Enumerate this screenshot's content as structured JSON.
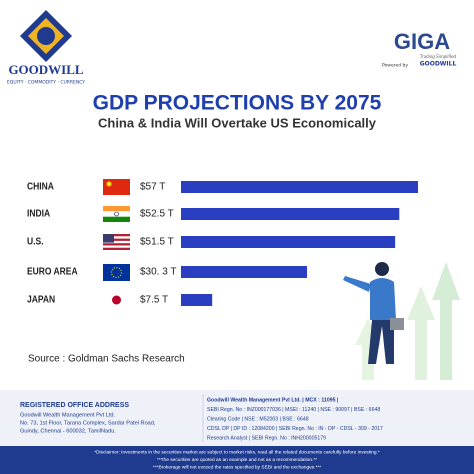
{
  "header": {
    "brand": "GOODWILL",
    "tagline": "EQUITY · COMMODITY · CURRENCY",
    "app": "GIGA",
    "app_tagline": "Trading Simplified",
    "powered_by": "Powered by",
    "powered_brand": "GOODWILL"
  },
  "chart_data": {
    "type": "bar",
    "orientation": "horizontal",
    "title": "GDP PROJECTIONS BY 2075",
    "subtitle": "China & India Will Overtake US Economically",
    "categories": [
      "CHINA",
      "INDIA",
      "U.S.",
      "EURO AREA",
      "JAPAN"
    ],
    "values": [
      57,
      52.5,
      51.5,
      30.3,
      7.5
    ],
    "value_labels": [
      "$57 T",
      "$52.5 T",
      "$51.5 T",
      "$30. 3 T",
      "$7.5 T"
    ],
    "color": "#2a3ec2"
  },
  "source": "Source : Goldman Sachs Research",
  "footer": {
    "office_title": "REGISTERED OFFICE ADDRESS",
    "office_lines": [
      "Goodwill Wealth Management Pvt Ltd.",
      "No. 73, 1st Floor, Tarana Complex, Sardar Patel Road,",
      "Guindy, Chennai - 600032, TamilNadu."
    ],
    "reg_lines": [
      "Goodwill Wealth Management Pvt Ltd.  |  MCX : 11095  |",
      "SEBI Regn. No : INZ000177036  |  MSEI : 11240  |  NSE : 90097  |  BSE : 6648",
      "Clearing Code  |  NSE : M52003  |  BSE : 6648",
      "CDSL DP  |  DP ID : 12084200  |  SEBI Regn. No : IN - DP - CDSL - 309 - 2017",
      "Research Analyst  |  SEBI Regn. No : INH200005179"
    ],
    "disclaimers": [
      "*Disclaimer: Investments in the securities market are subject to market risks, read all the related documents carefully before investing.*",
      "**The securities are quoted as an example and not as a recommendation.**",
      "***Brokerage will not exceed the rates specified by SEBI and the exchanges.***"
    ]
  }
}
